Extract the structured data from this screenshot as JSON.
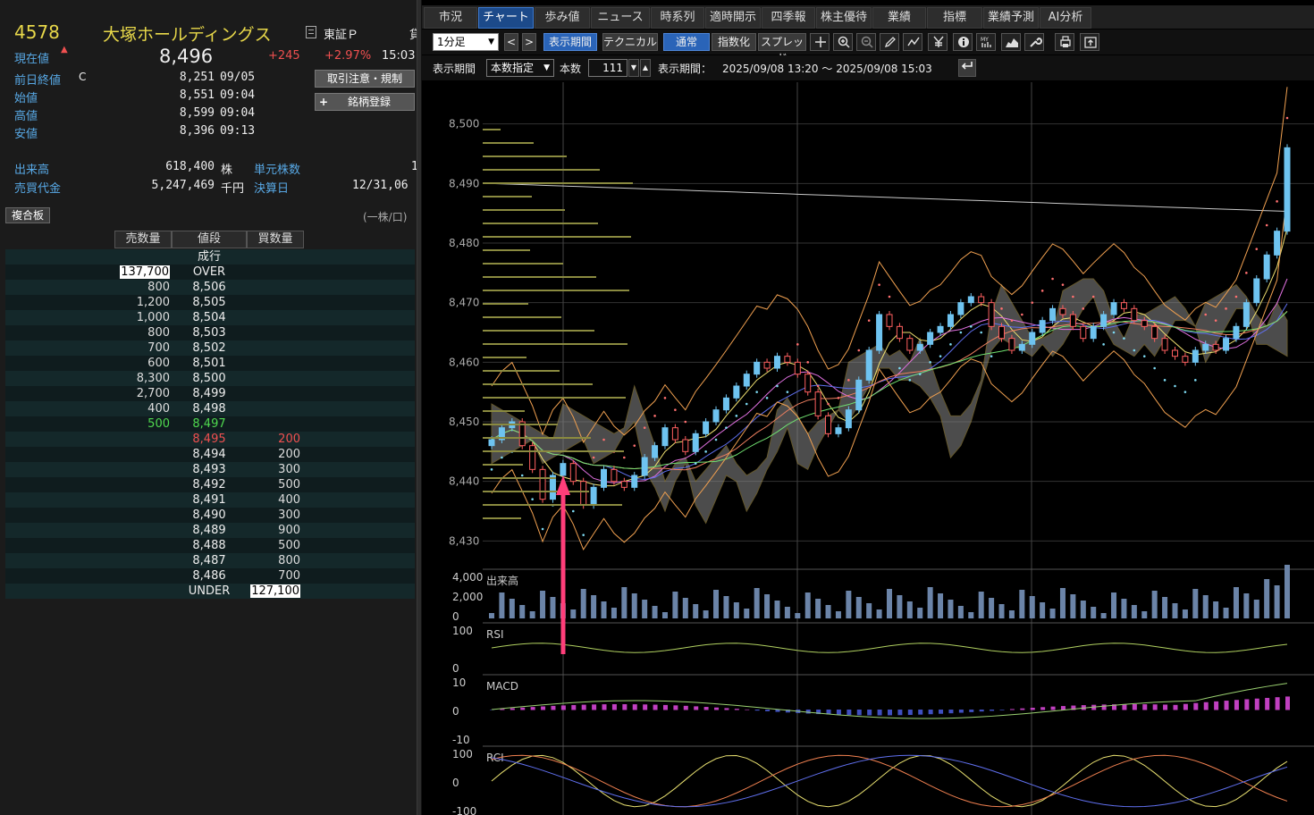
{
  "stock": {
    "code": "4578",
    "name": "大塚ホールディングス",
    "market_label": "東証Ｐ",
    "market_cut": "貸",
    "current_label": "現在値",
    "arrow": "▲",
    "price": "8,496",
    "change": "+245",
    "change_pct": "+2.97%",
    "time": "15:03",
    "rows": [
      {
        "label": "前日終値",
        "flag": "C",
        "value": "8,251",
        "time": "09/05"
      },
      {
        "label": "始値",
        "flag": "",
        "value": "8,551",
        "time": "09:04"
      },
      {
        "label": "高値",
        "flag": "",
        "value": "8,599",
        "time": "09:04"
      },
      {
        "label": "安値",
        "flag": "",
        "value": "8,396",
        "time": "09:13"
      }
    ],
    "volume_label": "出来高",
    "volume": "618,400",
    "volume_unit": "株",
    "unit_shares_label": "単元株数",
    "unit_shares_value": "1",
    "turnover_label": "売買代金",
    "turnover": "5,247,469",
    "turnover_unit": "千円",
    "settle_label": "決算日",
    "settle_value": "12/31,06"
  },
  "buttons": {
    "caution": "取引注意・規制",
    "register": "銘柄登録",
    "register_plus": "+"
  },
  "book": {
    "title": "複合板",
    "unit": "(一株/口)",
    "headers": {
      "sell": "売数量",
      "price": "値段",
      "buy": "買数量"
    },
    "rows": [
      {
        "sell": "",
        "price": "成行",
        "buy": "",
        "type": "market"
      },
      {
        "sell": "137,700",
        "price": "OVER",
        "buy": "",
        "type": "over"
      },
      {
        "sell": "800",
        "price": "8,506",
        "buy": "",
        "type": "ask"
      },
      {
        "sell": "1,200",
        "price": "8,505",
        "buy": "",
        "type": "ask"
      },
      {
        "sell": "1,000",
        "price": "8,504",
        "buy": "",
        "type": "ask"
      },
      {
        "sell": "800",
        "price": "8,503",
        "buy": "",
        "type": "ask"
      },
      {
        "sell": "700",
        "price": "8,502",
        "buy": "",
        "type": "ask"
      },
      {
        "sell": "600",
        "price": "8,501",
        "buy": "",
        "type": "ask"
      },
      {
        "sell": "8,300",
        "price": "8,500",
        "buy": "",
        "type": "ask"
      },
      {
        "sell": "2,700",
        "price": "8,499",
        "buy": "",
        "type": "ask"
      },
      {
        "sell": "400",
        "price": "8,498",
        "buy": "",
        "type": "ask"
      },
      {
        "sell": "500",
        "price": "8,497",
        "buy": "",
        "type": "best_ask"
      },
      {
        "sell": "",
        "price": "8,495",
        "buy": "200",
        "type": "best_bid"
      },
      {
        "sell": "",
        "price": "8,494",
        "buy": "200",
        "type": "bid"
      },
      {
        "sell": "",
        "price": "8,493",
        "buy": "300",
        "type": "bid"
      },
      {
        "sell": "",
        "price": "8,492",
        "buy": "500",
        "type": "bid"
      },
      {
        "sell": "",
        "price": "8,491",
        "buy": "400",
        "type": "bid"
      },
      {
        "sell": "",
        "price": "8,490",
        "buy": "300",
        "type": "bid"
      },
      {
        "sell": "",
        "price": "8,489",
        "buy": "900",
        "type": "bid"
      },
      {
        "sell": "",
        "price": "8,488",
        "buy": "500",
        "type": "bid"
      },
      {
        "sell": "",
        "price": "8,487",
        "buy": "800",
        "type": "bid"
      },
      {
        "sell": "",
        "price": "8,486",
        "buy": "700",
        "type": "bid"
      },
      {
        "sell": "",
        "price": "UNDER",
        "buy": "127,100",
        "type": "under"
      }
    ]
  },
  "tabs": [
    "市況",
    "チャート",
    "歩み値",
    "ニュース",
    "時系列",
    "適時開示",
    "四季報",
    "株主優待",
    "業績",
    "指標",
    "業績予測",
    "AI分析"
  ],
  "active_tab": 1,
  "toolbar": {
    "interval": "1分足",
    "prev": "<",
    "next": ">",
    "display_period": "表示期間",
    "technical": "テクニカル",
    "normal": "通常",
    "indexed": "指数化",
    "spread": "スプレッド",
    "icons": [
      "crosshair-icon",
      "zoom-in-icon",
      "zoom-out-icon",
      "pencil-icon",
      "chart-type-icon",
      "yen-icon",
      "info-icon",
      "my-indicator-icon",
      "mountain-icon",
      "wrench-icon",
      "print-icon",
      "export-icon"
    ]
  },
  "toolbar2": {
    "period_label": "表示期間",
    "mode": "本数指定",
    "count_label": "本数",
    "count": "111",
    "range_label": "表示期間：",
    "range": "2025/09/08 13:20 ～ 2025/09/08 15:03",
    "return_icon": "return-icon"
  },
  "chart_data": {
    "type": "candlestick",
    "price_axis": {
      "ticks": [
        "8,500",
        "8,490",
        "8,480",
        "8,470",
        "8,460",
        "8,450",
        "8,440",
        "8,430"
      ],
      "ylim": [
        8426,
        8504
      ]
    },
    "panels": [
      {
        "name": "出来高",
        "ticks": [
          "4,000",
          "2,000",
          "0"
        ]
      },
      {
        "name": "RSI",
        "ticks": [
          "100",
          "0"
        ]
      },
      {
        "name": "MACD",
        "ticks": [
          "10",
          "0",
          "-10"
        ]
      },
      {
        "name": "RCI",
        "ticks": [
          "100",
          "0",
          "-100"
        ]
      }
    ],
    "candles_close": [
      8447,
      8449,
      8450,
      8446,
      8442,
      8437,
      8441,
      8443,
      8440,
      8436,
      8439,
      8442,
      8440,
      8439,
      8441,
      8444,
      8446,
      8449,
      8447,
      8445,
      8448,
      8450,
      8452,
      8454,
      8456,
      8458,
      8460,
      8459,
      8461,
      8460,
      8458,
      8455,
      8451,
      8448,
      8449,
      8452,
      8457,
      8462,
      8468,
      8466,
      8464,
      8462,
      8463,
      8465,
      8466,
      8468,
      8470,
      8471,
      8470,
      8466,
      8464,
      8462,
      8463,
      8465,
      8467,
      8469,
      8468,
      8466,
      8464,
      8466,
      8468,
      8470,
      8469,
      8467,
      8466,
      8464,
      8462,
      8461,
      8460,
      8462,
      8463,
      8462,
      8464,
      8466,
      8470,
      8474,
      8478,
      8482,
      8496
    ],
    "colors": {
      "up_candle": "#6ec3f0",
      "down_candle": "#ff6060",
      "cloud": "#8a8a8a",
      "grid": "#3a3a3a"
    }
  },
  "annotation": {
    "arrow_color": "#ff3e7a"
  }
}
